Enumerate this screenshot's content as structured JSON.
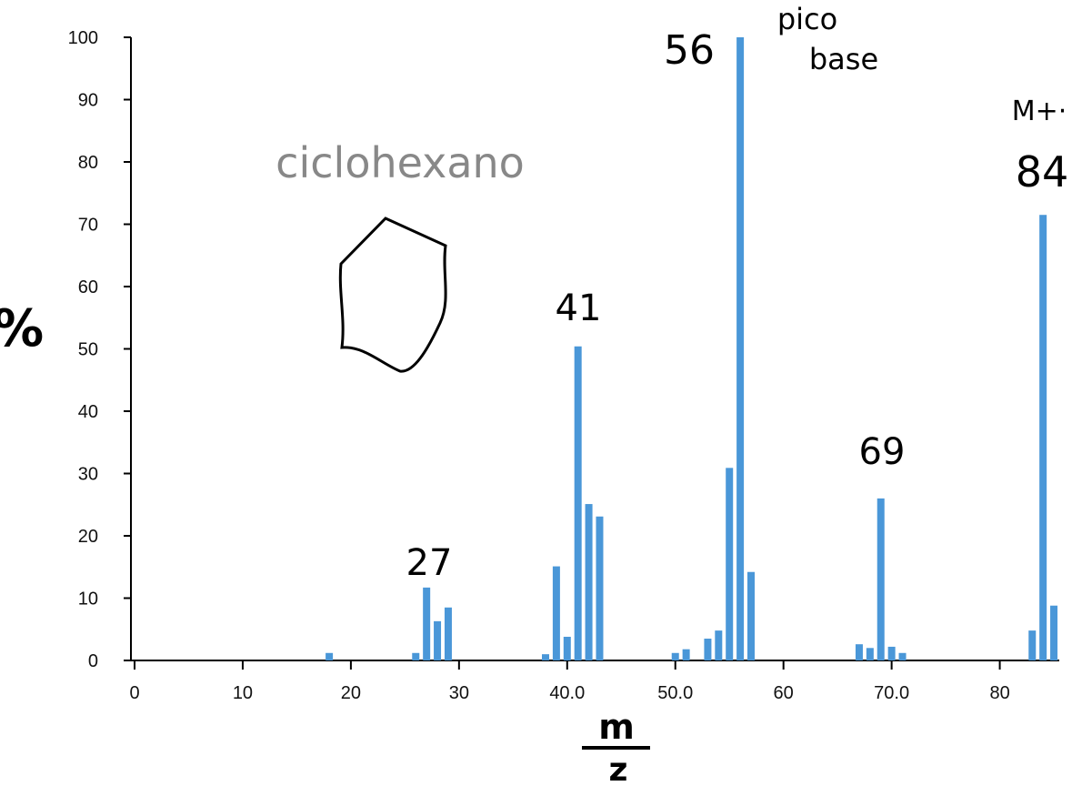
{
  "chart_data": {
    "type": "bar",
    "x": [
      18,
      26,
      27,
      28,
      29,
      38,
      39,
      40,
      41,
      42,
      43,
      50,
      51,
      53,
      54,
      55,
      56,
      57,
      67,
      68,
      69,
      70,
      71,
      83,
      84,
      85
    ],
    "values": [
      1.2,
      1.2,
      11.7,
      6.3,
      8.5,
      1,
      15.1,
      3.8,
      50.4,
      25.1,
      23.1,
      1.2,
      1.8,
      3.5,
      4.8,
      30.9,
      100,
      14.2,
      2.6,
      2,
      26,
      2.2,
      1.2,
      4.8,
      71.5,
      8.8
    ],
    "color": "#4a97d8",
    "xlim": [
      0,
      85.5
    ],
    "xticks": [
      0,
      10,
      20,
      30,
      {
        "value": 40,
        "label": "40.0"
      },
      {
        "value": 50,
        "label": "50.0"
      },
      60,
      {
        "value": 70,
        "label": "70.0"
      },
      80
    ],
    "ylim": [
      0,
      100
    ],
    "yticks": [
      0,
      10,
      20,
      30,
      40,
      50,
      60,
      70,
      80,
      90,
      100
    ],
    "ylabel": "%",
    "xlabel_parts": [
      "m",
      "z"
    ],
    "annotations": [
      "ciclohexano",
      "27",
      "41",
      "56",
      "pico",
      "base",
      "M+·",
      "84",
      "69"
    ]
  }
}
